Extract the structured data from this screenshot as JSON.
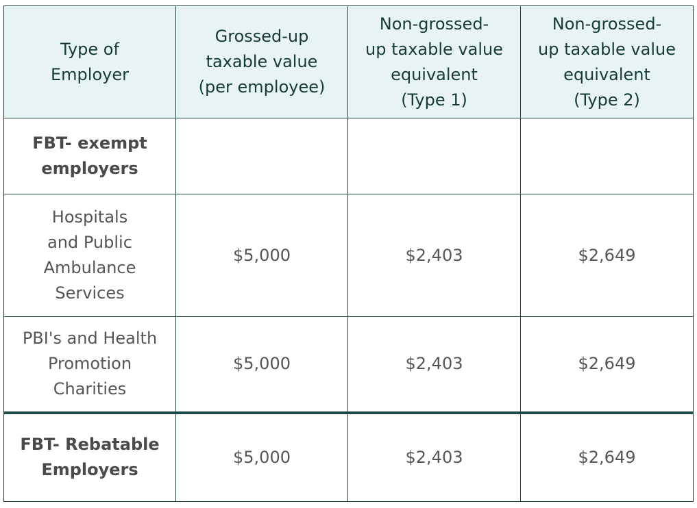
{
  "table": {
    "headers": [
      [
        "Type of",
        "Employer"
      ],
      [
        "Grossed-up",
        "taxable value",
        "(per employee)"
      ],
      [
        "Non-grossed-",
        "up taxable value",
        "equivalent",
        "(Type 1)"
      ],
      [
        "Non-grossed-",
        "up taxable value",
        "equivalent",
        "(Type 2)"
      ]
    ],
    "rows": [
      {
        "label": [
          "FBT- exempt",
          "employers"
        ],
        "category": true,
        "cells": [
          "",
          "",
          ""
        ]
      },
      {
        "label": [
          "Hospitals",
          "and Public",
          "Ambulance",
          "Services"
        ],
        "category": false,
        "cells": [
          "$5,000",
          "$2,403",
          "$2,649"
        ]
      },
      {
        "label": [
          "PBI's and Health",
          "Promotion",
          "Charities"
        ],
        "category": false,
        "cells": [
          "$5,000",
          "$2,403",
          "$2,649"
        ]
      },
      {
        "label": [
          "FBT- Rebatable",
          "Employers"
        ],
        "category": true,
        "cells": [
          "$5,000",
          "$2,403",
          "$2,649"
        ]
      }
    ]
  }
}
